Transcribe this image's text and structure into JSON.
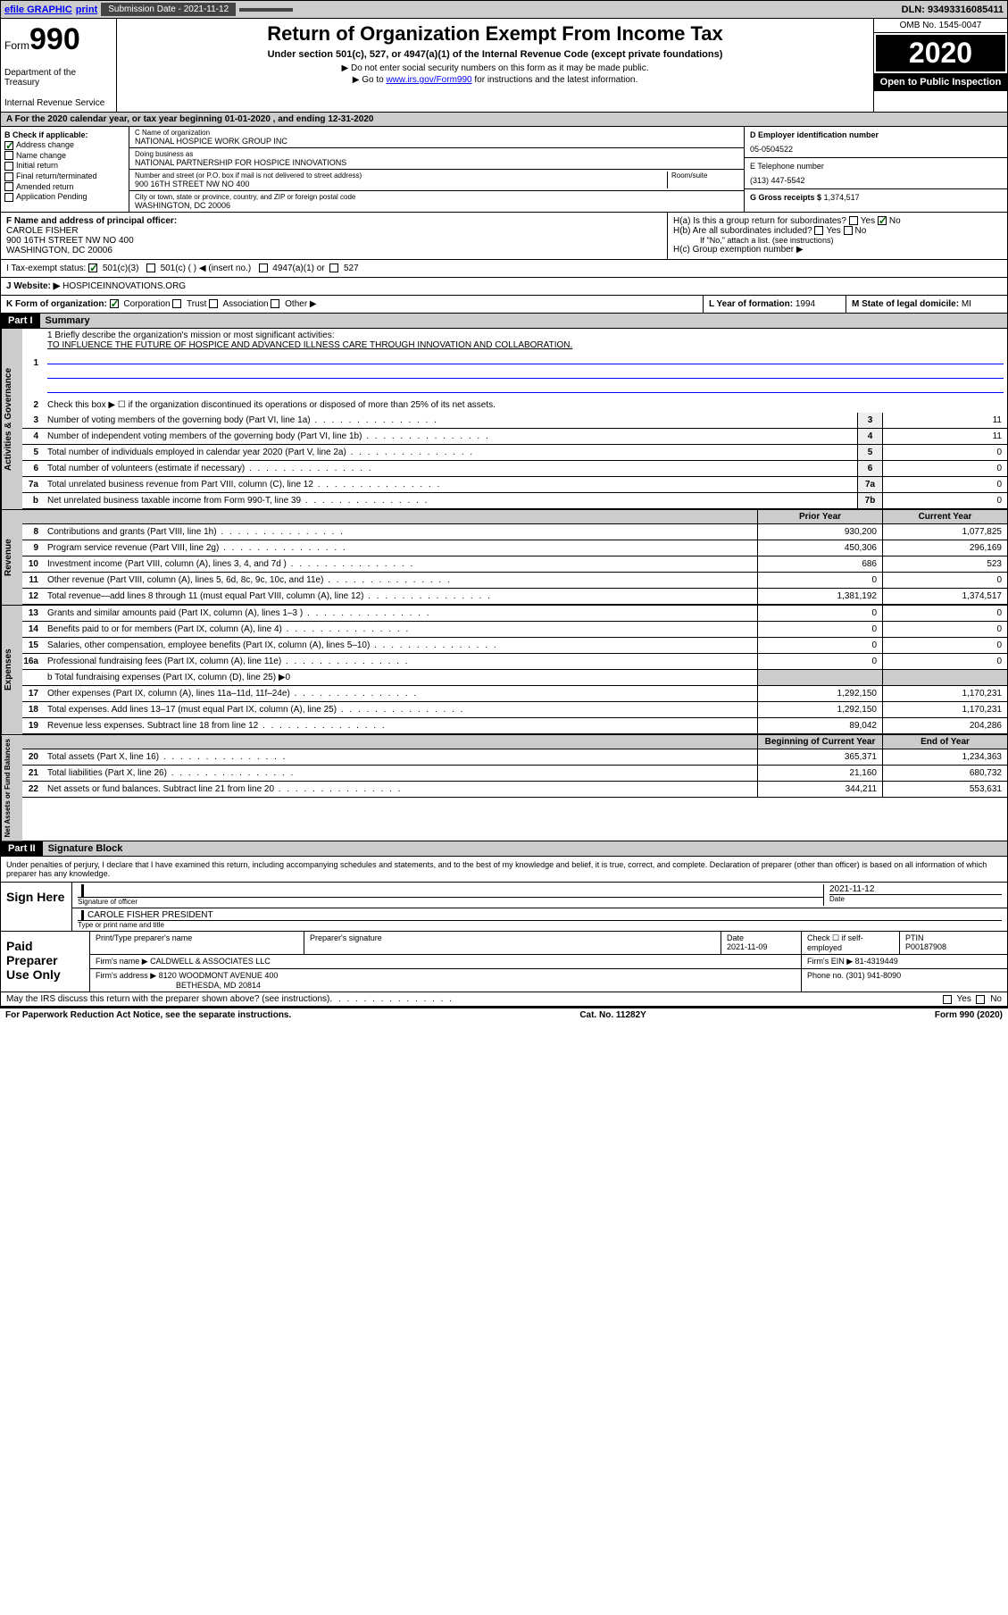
{
  "topbar": {
    "efile": "efile GRAPHIC",
    "print": "print",
    "submission_label": "Submission Date - 2021-11-12",
    "dln": "DLN: 93493316085411"
  },
  "header": {
    "form_prefix": "Form",
    "form_number": "990",
    "dept1": "Department of the Treasury",
    "dept2": "Internal Revenue Service",
    "title": "Return of Organization Exempt From Income Tax",
    "subtitle": "Under section 501(c), 527, or 4947(a)(1) of the Internal Revenue Code (except private foundations)",
    "note1": "▶ Do not enter social security numbers on this form as it may be made public.",
    "note2_pre": "▶ Go to ",
    "note2_link": "www.irs.gov/Form990",
    "note2_post": " for instructions and the latest information.",
    "omb": "OMB No. 1545-0047",
    "year": "2020",
    "open_public": "Open to Public Inspection"
  },
  "tax_year": "A For the 2020 calendar year, or tax year beginning 01-01-2020    , and ending 12-31-2020",
  "section_b": {
    "label": "B Check if applicable:",
    "items": [
      "Address change",
      "Name change",
      "Initial return",
      "Final return/terminated",
      "Amended return",
      "Application Pending"
    ],
    "checked_idx": 0
  },
  "section_c": {
    "name_label": "C Name of organization",
    "name": "NATIONAL HOSPICE WORK GROUP INC",
    "dba_label": "Doing business as",
    "dba": "NATIONAL PARTNERSHIP FOR HOSPICE INNOVATIONS",
    "addr_label": "Number and street (or P.O. box if mail is not delivered to street address)",
    "room_label": "Room/suite",
    "addr": "900 16TH STREET NW NO 400",
    "city_label": "City or town, state or province, country, and ZIP or foreign postal code",
    "city": "WASHINGTON, DC  20006"
  },
  "section_d": {
    "ein_label": "D Employer identification number",
    "ein": "05-0504522",
    "phone_label": "E Telephone number",
    "phone": "(313) 447-5542",
    "gross_label": "G Gross receipts $",
    "gross": "1,374,517"
  },
  "section_f": {
    "label": "F  Name and address of principal officer:",
    "name": "CAROLE FISHER",
    "addr1": "900 16TH STREET NW NO 400",
    "addr2": "WASHINGTON, DC  20006"
  },
  "section_h": {
    "ha": "H(a)  Is this a group return for subordinates?",
    "hb": "H(b)  Are all subordinates included?",
    "hb_note": "If \"No,\" attach a list. (see instructions)",
    "hc": "H(c)  Group exemption number ▶"
  },
  "tax_exempt": {
    "label": "I    Tax-exempt status:",
    "opt1": "501(c)(3)",
    "opt2": "501(c) (   ) ◀ (insert no.)",
    "opt3": "4947(a)(1) or",
    "opt4": "527"
  },
  "website": {
    "label": "J   Website: ▶",
    "value": "HOSPICEINNOVATIONS.ORG"
  },
  "form_org": {
    "k_label": "K Form of organization:",
    "k_opts": [
      "Corporation",
      "Trust",
      "Association",
      "Other ▶"
    ],
    "l_label": "L Year of formation:",
    "l_val": "1994",
    "m_label": "M State of legal domicile:",
    "m_val": "MI"
  },
  "part1": {
    "hdr": "Part I",
    "title": "Summary"
  },
  "governance": {
    "vlabel": "Activities & Governance",
    "line1_label": "1  Briefly describe the organization's mission or most significant activities:",
    "line1_text": "TO INFLUENCE THE FUTURE OF HOSPICE AND ADVANCED ILLNESS CARE THROUGH INNOVATION AND COLLABORATION.",
    "line2": "Check this box ▶ ☐  if the organization discontinued its operations or disposed of more than 25% of its net assets.",
    "rows": [
      {
        "n": "3",
        "t": "Number of voting members of the governing body (Part VI, line 1a)",
        "box": "3",
        "v": "11"
      },
      {
        "n": "4",
        "t": "Number of independent voting members of the governing body (Part VI, line 1b)",
        "box": "4",
        "v": "11"
      },
      {
        "n": "5",
        "t": "Total number of individuals employed in calendar year 2020 (Part V, line 2a)",
        "box": "5",
        "v": "0"
      },
      {
        "n": "6",
        "t": "Total number of volunteers (estimate if necessary)",
        "box": "6",
        "v": "0"
      },
      {
        "n": "7a",
        "t": "Total unrelated business revenue from Part VIII, column (C), line 12",
        "box": "7a",
        "v": "0"
      },
      {
        "n": "b",
        "t": "Net unrelated business taxable income from Form 990-T, line 39",
        "box": "7b",
        "v": "0"
      }
    ]
  },
  "twocol_hdr": {
    "prior": "Prior Year",
    "current": "Current Year"
  },
  "revenue": {
    "vlabel": "Revenue",
    "rows": [
      {
        "n": "8",
        "t": "Contributions and grants (Part VIII, line 1h)",
        "py": "930,200",
        "cy": "1,077,825"
      },
      {
        "n": "9",
        "t": "Program service revenue (Part VIII, line 2g)",
        "py": "450,306",
        "cy": "296,169"
      },
      {
        "n": "10",
        "t": "Investment income (Part VIII, column (A), lines 3, 4, and 7d )",
        "py": "686",
        "cy": "523"
      },
      {
        "n": "11",
        "t": "Other revenue (Part VIII, column (A), lines 5, 6d, 8c, 9c, 10c, and 11e)",
        "py": "0",
        "cy": "0"
      },
      {
        "n": "12",
        "t": "Total revenue—add lines 8 through 11 (must equal Part VIII, column (A), line 12)",
        "py": "1,381,192",
        "cy": "1,374,517"
      }
    ]
  },
  "expenses": {
    "vlabel": "Expenses",
    "rows": [
      {
        "n": "13",
        "t": "Grants and similar amounts paid (Part IX, column (A), lines 1–3 )",
        "py": "0",
        "cy": "0"
      },
      {
        "n": "14",
        "t": "Benefits paid to or for members (Part IX, column (A), line 4)",
        "py": "0",
        "cy": "0"
      },
      {
        "n": "15",
        "t": "Salaries, other compensation, employee benefits (Part IX, column (A), lines 5–10)",
        "py": "0",
        "cy": "0"
      },
      {
        "n": "16a",
        "t": "Professional fundraising fees (Part IX, column (A), line 11e)",
        "py": "0",
        "cy": "0"
      }
    ],
    "line_b": "b  Total fundraising expenses (Part IX, column (D), line 25) ▶0",
    "rows2": [
      {
        "n": "17",
        "t": "Other expenses (Part IX, column (A), lines 11a–11d, 11f–24e)",
        "py": "1,292,150",
        "cy": "1,170,231"
      },
      {
        "n": "18",
        "t": "Total expenses. Add lines 13–17 (must equal Part IX, column (A), line 25)",
        "py": "1,292,150",
        "cy": "1,170,231"
      },
      {
        "n": "19",
        "t": "Revenue less expenses. Subtract line 18 from line 12",
        "py": "89,042",
        "cy": "204,286"
      }
    ]
  },
  "netassets_hdr": {
    "begin": "Beginning of Current Year",
    "end": "End of Year"
  },
  "netassets": {
    "vlabel": "Net Assets or Fund Balances",
    "rows": [
      {
        "n": "20",
        "t": "Total assets (Part X, line 16)",
        "py": "365,371",
        "cy": "1,234,363"
      },
      {
        "n": "21",
        "t": "Total liabilities (Part X, line 26)",
        "py": "21,160",
        "cy": "680,732"
      },
      {
        "n": "22",
        "t": "Net assets or fund balances. Subtract line 21 from line 20",
        "py": "344,211",
        "cy": "553,631"
      }
    ]
  },
  "part2": {
    "hdr": "Part II",
    "title": "Signature Block"
  },
  "sig": {
    "declare": "Under penalties of perjury, I declare that I have examined this return, including accompanying schedules and statements, and to the best of my knowledge and belief, it is true, correct, and complete. Declaration of preparer (other than officer) is based on all information of which preparer has any knowledge.",
    "sign_here": "Sign Here",
    "sig_officer": "Signature of officer",
    "date": "2021-11-12",
    "date_label": "Date",
    "officer_name": "CAROLE FISHER PRESIDENT",
    "officer_label": "Type or print name and title",
    "paid": "Paid Preparer Use Only",
    "prep_name_label": "Print/Type preparer's name",
    "prep_sig_label": "Preparer's signature",
    "prep_date_label": "Date",
    "prep_date": "2021-11-09",
    "check_self": "Check ☐ if self-employed",
    "ptin_label": "PTIN",
    "ptin": "P00187908",
    "firm_name_label": "Firm's name    ▶",
    "firm_name": "CALDWELL & ASSOCIATES LLC",
    "firm_ein_label": "Firm's EIN ▶",
    "firm_ein": "81-4319449",
    "firm_addr_label": "Firm's address ▶",
    "firm_addr1": "8120 WOODMONT AVENUE 400",
    "firm_addr2": "BETHESDA, MD  20814",
    "firm_phone_label": "Phone no.",
    "firm_phone": "(301) 941-8090",
    "discuss": "May the IRS discuss this return with the preparer shown above? (see instructions)",
    "yes": "Yes",
    "no": "No"
  },
  "footer": {
    "pra": "For Paperwork Reduction Act Notice, see the separate instructions.",
    "cat": "Cat. No. 11282Y",
    "form": "Form 990 (2020)"
  }
}
